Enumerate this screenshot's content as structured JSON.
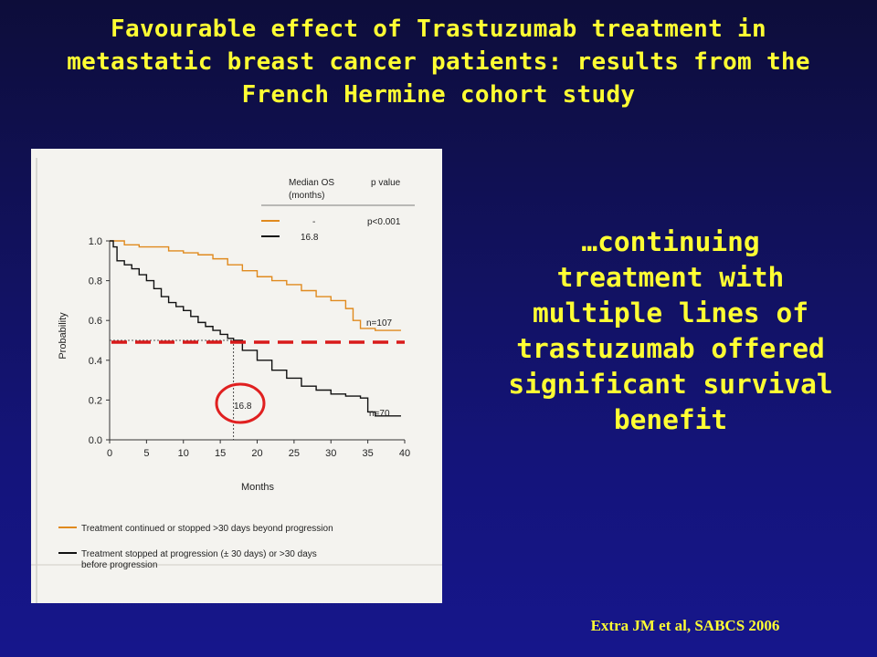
{
  "slide": {
    "title": "Favourable effect of Trastuzumab treatment in metastatic breast cancer patients: results from the French Hermine cohort study",
    "side_note": "…continuing treatment with multiple lines of trastuzumab offered significant survival benefit",
    "citation": "Extra JM et al, SABCS 2006"
  },
  "chart_data": {
    "type": "line",
    "title": "",
    "xlabel": "Months",
    "ylabel": "Probability",
    "xlim": [
      0,
      40
    ],
    "ylim": [
      0,
      1.0
    ],
    "x_ticks": [
      "0",
      "5",
      "10",
      "15",
      "20",
      "25",
      "30",
      "35",
      "40"
    ],
    "y_ticks": [
      "0.0",
      "0.2",
      "0.4",
      "0.6",
      "0.8",
      "1.0"
    ],
    "grid": false,
    "legend_placement": "bottom",
    "series_header": {
      "col1": "Median OS",
      "col1b": "(months)",
      "col2": "p value"
    },
    "series": [
      {
        "median_os": "-",
        "p_value": "p<0.001",
        "n_label": "n=107",
        "legend_label": "Treatment continued or stopped >30 days beyond progression",
        "color": "#e08a1e",
        "x": [
          0,
          2,
          4,
          8,
          10,
          12,
          14,
          16,
          18,
          20,
          22,
          24,
          26,
          28,
          30,
          32,
          33,
          34,
          36,
          39.5
        ],
        "y": [
          1.0,
          0.98,
          0.97,
          0.95,
          0.94,
          0.93,
          0.91,
          0.88,
          0.85,
          0.82,
          0.8,
          0.78,
          0.75,
          0.72,
          0.7,
          0.66,
          0.6,
          0.56,
          0.55,
          0.55
        ]
      },
      {
        "median_os": "16.8",
        "p_value": "",
        "n_label": "n=70",
        "legend_label": "Treatment stopped at progression (± 30 days) or >30 days before progression",
        "color": "#111111",
        "x": [
          0,
          0.5,
          1,
          2,
          3,
          4,
          5,
          6,
          7,
          8,
          9,
          10,
          11,
          12,
          13,
          14,
          15,
          16,
          16.8,
          18,
          20,
          22,
          24,
          26,
          28,
          30,
          32,
          34,
          35,
          36,
          39.5
        ],
        "y": [
          1.0,
          0.97,
          0.9,
          0.88,
          0.86,
          0.83,
          0.8,
          0.76,
          0.72,
          0.69,
          0.67,
          0.65,
          0.62,
          0.59,
          0.57,
          0.55,
          0.53,
          0.51,
          0.5,
          0.45,
          0.4,
          0.35,
          0.31,
          0.27,
          0.25,
          0.23,
          0.22,
          0.21,
          0.14,
          0.12,
          0.12
        ]
      }
    ],
    "median_reference": {
      "y": 0.5,
      "x": 16.8,
      "label": "16.8"
    },
    "overlay_colors": {
      "dashed_line": "#d81a1a",
      "circle": "#e02020"
    }
  }
}
